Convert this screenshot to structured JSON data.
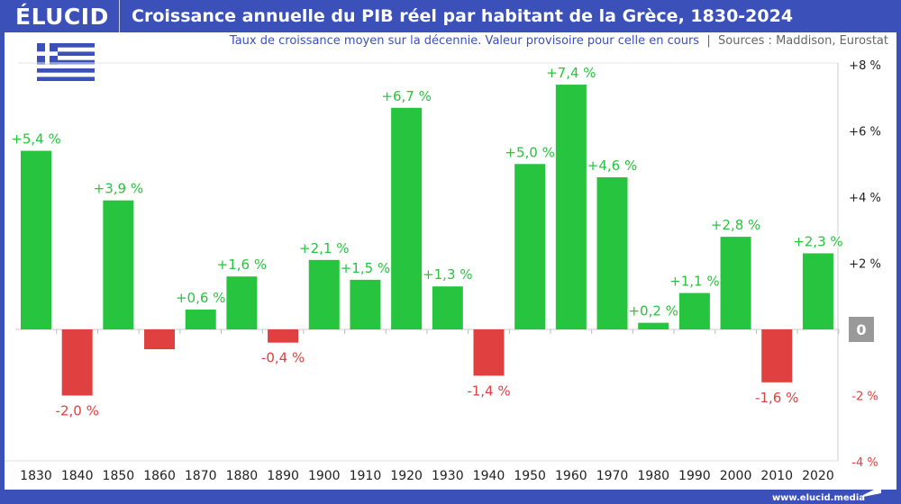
{
  "header": {
    "logo": "ÉLUCID",
    "title": "Croissance annuelle du PIB réel par habitant de la Grèce, 1830-2024"
  },
  "subtitle": "Taux de croissance moyen sur la décennie. Valeur provisoire pour celle en cours",
  "sources": "Sources : Maddison, Eurostat",
  "footer": "www.elucid.media",
  "flag_icon": "greece-flag-icon",
  "colors": {
    "brand": "#3b51b9",
    "positive": "#27c43f",
    "negative": "#e04040"
  },
  "chart_data": {
    "type": "bar",
    "categories": [
      "1830",
      "1840",
      "1850",
      "1860",
      "1870",
      "1880",
      "1890",
      "1900",
      "1910",
      "1920",
      "1930",
      "1940",
      "1950",
      "1960",
      "1970",
      "1980",
      "1990",
      "2000",
      "2010",
      "2020"
    ],
    "values": [
      5.4,
      -2.0,
      3.9,
      -0.6,
      0.6,
      1.6,
      -0.4,
      2.1,
      1.5,
      6.7,
      1.3,
      -1.4,
      5.0,
      7.4,
      4.6,
      0.2,
      1.1,
      2.8,
      -1.6,
      2.3
    ],
    "labels": [
      "+5,4 %",
      "-2,0 %",
      "+3,9 %",
      "",
      "+0,6 %",
      "+1,6 %",
      "-0,4 %",
      "+2,1 %",
      "+1,5 %",
      "+6,7 %",
      "+1,3 %",
      "-1,4 %",
      "+5,0 %",
      "+7,4 %",
      "+4,6 %",
      "+0,2 %",
      "+1,1 %",
      "+2,8 %",
      "-1,6 %",
      "+2,3 %"
    ],
    "yticks": [
      {
        "v": 8,
        "t": "+8 %"
      },
      {
        "v": 6,
        "t": "+6 %"
      },
      {
        "v": 4,
        "t": "+4 %"
      },
      {
        "v": 2,
        "t": "+2 %"
      },
      {
        "v": 0,
        "t": "0"
      },
      {
        "v": -2,
        "t": "-2 %"
      },
      {
        "v": -4,
        "t": "-4 %"
      }
    ],
    "ylim": [
      -4,
      8
    ],
    "yaxis_position": "right",
    "grid": false
  }
}
